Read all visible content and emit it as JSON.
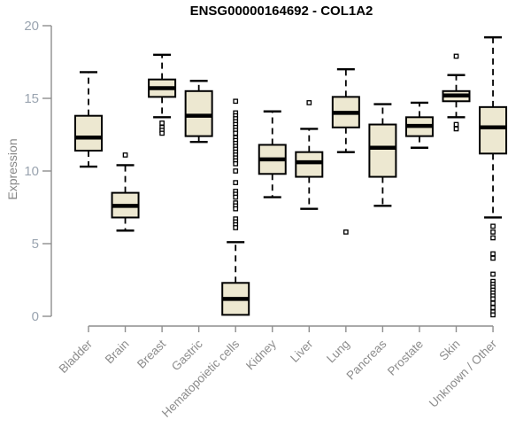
{
  "title": "ENSG00000164692 - COL1A2",
  "chart_data": {
    "type": "boxplot",
    "title": "ENSG00000164692 - COL1A2",
    "xlabel": "",
    "ylabel": "Expression",
    "ylim": [
      0,
      20
    ],
    "yticks": [
      0,
      5,
      10,
      15,
      20
    ],
    "grid": false,
    "legend": "none",
    "colors": {
      "box_fill": "#EDE8D1",
      "box_border": "#000000",
      "median": "#000000",
      "axis": "#8E8E8E",
      "x_tick_label": "#8C8C8C",
      "y_tick_label": "#9AA4B0",
      "title": "#000000",
      "ylabel": "#878787",
      "background": "#FFFFFF"
    },
    "categories": [
      "Bladder",
      "Brain",
      "Breast",
      "Gastric",
      "Hematopoietic cells",
      "Kidney",
      "Liver",
      "Lung",
      "Pancreas",
      "Prostate",
      "Skin",
      "Unknown / Other"
    ],
    "series": [
      {
        "category": "Bladder",
        "whisker_low": 10.3,
        "q1": 11.4,
        "median": 12.3,
        "q3": 13.8,
        "whisker_high": 16.8,
        "outliers": []
      },
      {
        "category": "Brain",
        "whisker_low": 5.9,
        "q1": 6.8,
        "median": 7.6,
        "q3": 8.5,
        "whisker_high": 10.4,
        "outliers": [
          11.1
        ]
      },
      {
        "category": "Breast",
        "whisker_low": 13.7,
        "q1": 15.1,
        "median": 15.7,
        "q3": 16.3,
        "whisker_high": 18.0,
        "outliers": [
          13.3,
          13.0,
          12.8,
          12.6
        ]
      },
      {
        "category": "Gastric",
        "whisker_low": 12.0,
        "q1": 12.4,
        "median": 13.8,
        "q3": 15.5,
        "whisker_high": 16.2,
        "outliers": []
      },
      {
        "category": "Hematopoietic cells",
        "whisker_low": 0.1,
        "q1": 0.1,
        "median": 1.2,
        "q3": 2.3,
        "whisker_high": 5.1,
        "outliers": [
          14.8,
          14.0,
          13.8,
          13.6,
          13.4,
          13.2,
          13.0,
          12.8,
          12.6,
          12.3,
          12.1,
          11.9,
          11.7,
          11.5,
          11.3,
          11.1,
          10.9,
          10.7,
          10.5,
          10.0,
          9.2,
          8.6,
          8.4,
          8.2,
          7.8,
          7.6,
          7.4,
          6.7,
          6.5,
          6.3,
          6.1
        ]
      },
      {
        "category": "Kidney",
        "whisker_low": 8.2,
        "q1": 9.8,
        "median": 10.8,
        "q3": 11.8,
        "whisker_high": 14.1,
        "outliers": []
      },
      {
        "category": "Liver",
        "whisker_low": 7.4,
        "q1": 9.6,
        "median": 10.6,
        "q3": 11.3,
        "whisker_high": 12.9,
        "outliers": [
          14.7
        ]
      },
      {
        "category": "Lung",
        "whisker_low": 11.3,
        "q1": 13.0,
        "median": 14.0,
        "q3": 15.1,
        "whisker_high": 17.0,
        "outliers": [
          5.8
        ]
      },
      {
        "category": "Pancreas",
        "whisker_low": 7.6,
        "q1": 9.6,
        "median": 11.6,
        "q3": 13.2,
        "whisker_high": 14.6,
        "outliers": []
      },
      {
        "category": "Prostate",
        "whisker_low": 11.6,
        "q1": 12.4,
        "median": 13.1,
        "q3": 13.7,
        "whisker_high": 14.7,
        "outliers": []
      },
      {
        "category": "Skin",
        "whisker_low": 13.7,
        "q1": 14.8,
        "median": 15.2,
        "q3": 15.5,
        "whisker_high": 16.6,
        "outliers": [
          17.9,
          13.2,
          12.9
        ]
      },
      {
        "category": "Unknown / Other",
        "whisker_low": 6.8,
        "q1": 11.2,
        "median": 13.0,
        "q3": 14.4,
        "whisker_high": 19.2,
        "outliers": [
          6.2,
          5.8,
          5.4,
          4.3,
          4.0,
          2.9,
          2.4,
          2.2,
          2.0,
          1.8,
          1.6,
          1.4,
          1.2,
          0.9,
          0.6,
          0.3,
          0.1
        ]
      }
    ]
  }
}
